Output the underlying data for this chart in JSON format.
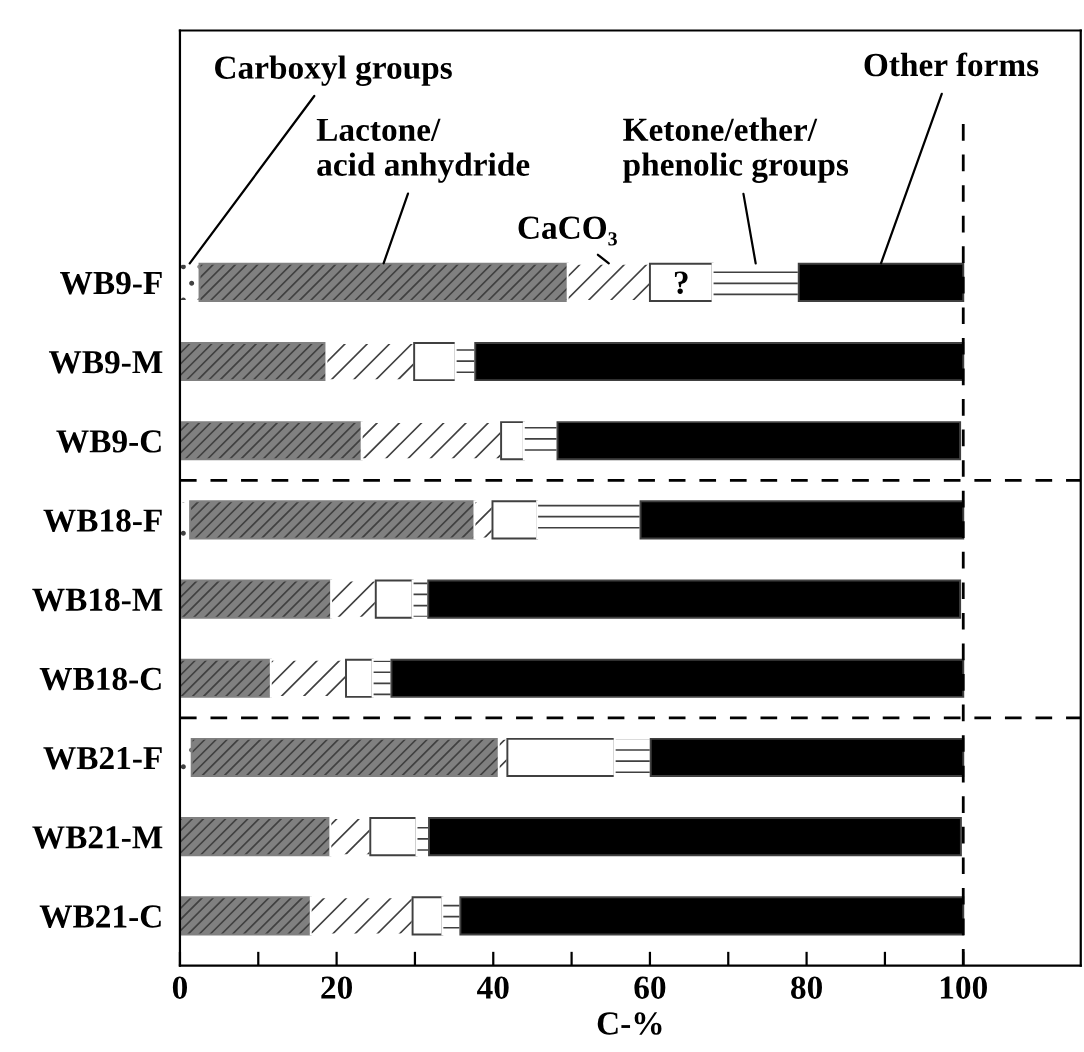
{
  "chart_data": {
    "type": "bar",
    "orientation": "horizontal",
    "stacked": true,
    "categories": [
      "WB9-F",
      "WB9-M",
      "WB9-C",
      "WB18-F",
      "WB18-M",
      "WB18-C",
      "WB21-F",
      "WB21-M",
      "WB21-C"
    ],
    "series": [
      {
        "name": "Carboxyl groups",
        "color": "#ffffff",
        "values": [
          2.5,
          0,
          null,
          1.3,
          null,
          0,
          1.5,
          null,
          0
        ]
      },
      {
        "name": "Lactone/\nacid anhydride",
        "color": "#808080",
        "values": [
          47,
          18.7,
          23.2,
          36.3,
          19.3,
          11.6,
          39.2,
          19.2,
          16.7
        ]
      },
      {
        "name": "CaCO₃",
        "color": "#ffffff",
        "values": [
          10.5,
          11.2,
          17.8,
          2.3,
          5.7,
          9.6,
          1.1,
          5.1,
          13
        ]
      },
      {
        "color": "#ffffff",
        "values": [
          8,
          5.3,
          2.9,
          5.7,
          4.7,
          3.4,
          13.7,
          5.9,
          3.8
        ]
      },
      {
        "name": "Ketone/ether/\nphenolic groups",
        "color": "#ffffff",
        "values": [
          11,
          2.5,
          4.3,
          13.2,
          2,
          2.4,
          4.6,
          1.6,
          2.3
        ]
      },
      {
        "name": "Other forms",
        "color": "#000000",
        "values": [
          21,
          62.3,
          51.4,
          41.2,
          67.9,
          73,
          39.9,
          67.9,
          64.2
        ]
      }
    ],
    "xlabel": "C-%",
    "xlim": [
      0,
      115
    ],
    "xticks": [
      0,
      {
        "value": 10,
        "label": null
      },
      20,
      {
        "value": 30,
        "label": null
      },
      40,
      {
        "value": 50,
        "label": null
      },
      60,
      {
        "value": 70,
        "label": null
      },
      80,
      {
        "value": 90,
        "label": null
      },
      100
    ],
    "ref_lines": [
      {
        "axis": "x",
        "value": 100,
        "line_style": "dashed",
        "color": "#000000"
      }
    ],
    "annotations": [
      "?"
    ],
    "grid": false
  }
}
